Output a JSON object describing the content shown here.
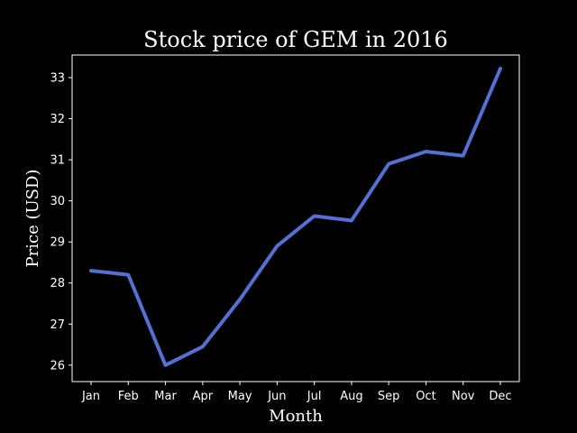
{
  "chart_data": {
    "type": "line",
    "title": "Stock price of GEM in 2016",
    "xlabel": "Month",
    "ylabel": "Price (USD)",
    "categories": [
      "Jan",
      "Feb",
      "Mar",
      "Apr",
      "May",
      "Jun",
      "Jul",
      "Aug",
      "Sep",
      "Oct",
      "Nov",
      "Dec"
    ],
    "series": [
      {
        "values": [
          28.3,
          28.2,
          26.0,
          26.45,
          27.6,
          28.9,
          29.63,
          29.52,
          30.9,
          31.2,
          31.1,
          33.22
        ]
      }
    ],
    "ylim": [
      25.6,
      33.55
    ],
    "yticks": [
      26,
      27,
      28,
      29,
      30,
      31,
      32,
      33
    ],
    "grid": false,
    "line_color": "#5470d4",
    "background_color": "#000000",
    "axis_color": "#ffffff"
  }
}
